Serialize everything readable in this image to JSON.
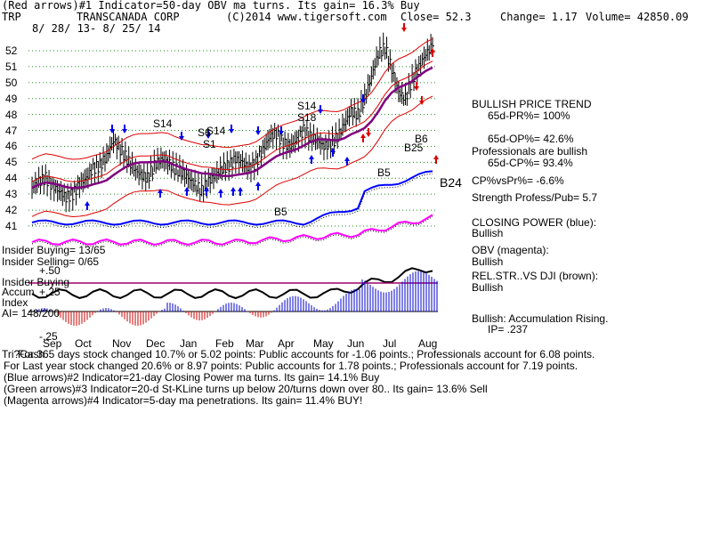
{
  "header": {
    "line1": "(Red arrows)#1 Indicator=50-day OBV ma turns. Its gain= 16.3% Buy",
    "ticker": "TRP",
    "company": "TRANSCANADA CORP",
    "copyright": "(C)2014 www.tigersoft.com",
    "close": "Close= 52.3",
    "change": "Change= 1.17",
    "volume": "Volume= 42850.09",
    "dates": "8/ 28/ 13- 8/ 25/ 14"
  },
  "panel": {
    "trend_title": "BULLISH PRICE TREND",
    "pr": "65d-PR%= 100%",
    "op": "65d-OP%= 42.6%",
    "prof_bullish": "Professionals are bullish",
    "cp": "65d-CP%= 93.4%",
    "cpvspr": "CP%vsPr%= -6.6%",
    "strength": "Strength Profess/Pub= 5.7",
    "closing_title": "CLOSING POWER (blue):",
    "closing_val": "Bullish",
    "obv_title": "OBV (magenta):",
    "obv_val": "Bullish",
    "relstr_title": "REL.STR..VS DJI (brown):",
    "relstr_val": "Bullish",
    "accum": "Bullish: Accumulation Rising.",
    "ip": "IP= .237"
  },
  "left_labels": {
    "insider_buying": "Insider Buying= 13/65",
    "insider_selling": "Insider Selling= 0/65",
    "insider_buying2": "Insider Buying",
    "accum": "Accum",
    "index": "Index",
    "ai": "AI= 148/200",
    "plus50": "+.50",
    "plus25": "+.25",
    "minus25": "-.25"
  },
  "chart_data": {
    "type": "line",
    "title": "TRANSCANADA CORP",
    "y_ticks": [
      "52",
      "51",
      "50",
      "49",
      "48",
      "47",
      "46",
      "45",
      "44",
      "43",
      "42",
      "41"
    ],
    "ylim": [
      41,
      52.5
    ],
    "x_ticks": [
      "Sep",
      "Oct",
      "Nov",
      "Dec",
      "Jan",
      "Feb",
      "Mar",
      "Apr",
      "May",
      "Jun",
      "Jul",
      "Aug"
    ],
    "grid": true,
    "signals": [
      {
        "label": "S14"
      },
      {
        "label": "S6"
      },
      {
        "label": "S14"
      },
      {
        "label": "S1"
      },
      {
        "label": "S14"
      },
      {
        "label": "S18"
      },
      {
        "label": "B5"
      },
      {
        "label": "B5"
      },
      {
        "label": "B25"
      },
      {
        "label": "B6"
      },
      {
        "label": "B24"
      }
    ],
    "price_series": {
      "name": "Close",
      "values": [
        43.4,
        43.8,
        44.0,
        43.5,
        43.2,
        42.8,
        43.0,
        43.6,
        44.0,
        44.6,
        44.8,
        45.4,
        46.4,
        45.8,
        45.2,
        44.6,
        44.2,
        44.0,
        44.8,
        45.2,
        45.0,
        44.6,
        44.4,
        44.0,
        43.6,
        43.2,
        43.8,
        44.2,
        44.6,
        44.8,
        45.2,
        45.0,
        44.6,
        45.0,
        45.8,
        46.6,
        46.8,
        46.2,
        46.0,
        46.4,
        47.0,
        46.6,
        46.4,
        46.0,
        46.2,
        46.6,
        47.4,
        48.2,
        48.0,
        49.0,
        50.4,
        51.8,
        52.2,
        50.8,
        49.4,
        49.0,
        50.2,
        51.0,
        51.8,
        52.3
      ]
    }
  },
  "footer": {
    "line1": "For 365 days stock changed 10.7% or 5.02 points: Public accounts for -1.06 points.; Professionals account for 6.08 points.",
    "line1_prefix": "Tri?Cash",
    "line2": "For Last year stock changed 20.6% or 8.97 points: Public accounts for 1.78 points.; Professionals account for 7.19 points.",
    "line3": "(Blue arrows)#2 Indicator=21-day Closing Power ma turns. Its gain= 14.1% Buy",
    "line4": "(Green arrows)#3 Indicator=20-d St-KLine turns up below 20/turns down over 80.. Its gain= 13.6% Sell",
    "line5": "(Magenta arrows)#4 Indicator=5-day ma penetrations. Its gain= 11.4% BUY!"
  },
  "colors": {
    "price": "#000000",
    "band": "#dd0000",
    "ma": "#800080",
    "closing_power": "#0000ff",
    "obv": "#ff00ff",
    "relstr": "#8b4513",
    "grid": "#228822",
    "accum_pos": "#0000cc",
    "accum_neg": "#cc0000"
  }
}
